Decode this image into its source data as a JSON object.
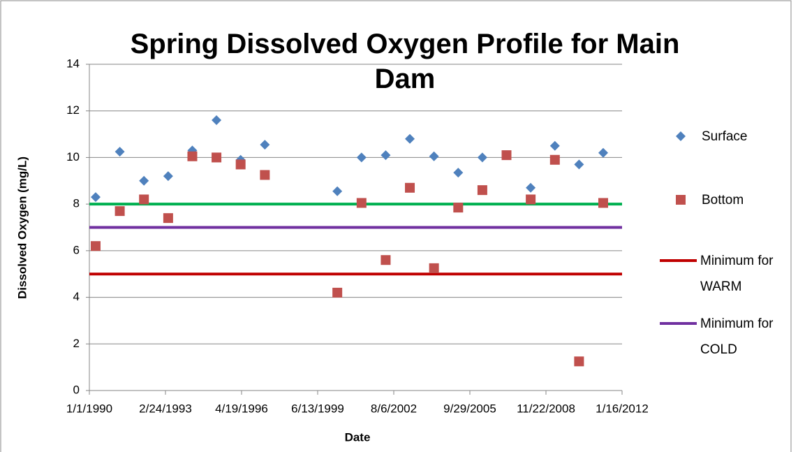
{
  "chart_data": {
    "type": "scatter",
    "title": "Spring Dissolved Oxygen Profile for Main Dam",
    "x_label": "Date",
    "y_label": "Dissolved Oxygen (mg/L)",
    "xlim": [
      32874,
      40924
    ],
    "xticks": [
      {
        "value": 32874,
        "label": "1/1/1990"
      },
      {
        "value": 34024,
        "label": "2/24/1993"
      },
      {
        "value": 35174,
        "label": "4/19/1996"
      },
      {
        "value": 36324,
        "label": "6/13/1999"
      },
      {
        "value": 37474,
        "label": "8/6/2002"
      },
      {
        "value": 38624,
        "label": "9/29/2005"
      },
      {
        "value": 39774,
        "label": "11/22/2008"
      },
      {
        "value": 40924,
        "label": "1/16/2012"
      }
    ],
    "ylim": [
      0,
      14
    ],
    "yticks": [
      0,
      2,
      4,
      6,
      8,
      10,
      12,
      14
    ],
    "grid": true,
    "legend": "right",
    "series": [
      {
        "name": "Surface",
        "color": "#4f81bd",
        "marker": "diamond",
        "x": [
          32969,
          33334,
          33699,
          34065,
          34430,
          34795,
          35160,
          35526,
          36621,
          36987,
          37352,
          37717,
          38082,
          38448,
          38813,
          39178,
          39543,
          39909,
          40274,
          40639
        ],
        "values": [
          8.3,
          10.25,
          9.0,
          9.2,
          10.3,
          11.6,
          9.9,
          10.55,
          8.55,
          10.0,
          10.1,
          10.8,
          10.05,
          9.35,
          10.0,
          null,
          8.7,
          10.5,
          9.7,
          10.2
        ]
      },
      {
        "name": "Bottom",
        "color": "#c0504d",
        "marker": "square",
        "x": [
          32969,
          33334,
          33699,
          34065,
          34430,
          34795,
          35160,
          35526,
          36621,
          36987,
          37352,
          37717,
          38082,
          38448,
          38813,
          39178,
          39543,
          39909,
          40274,
          40639
        ],
        "values": [
          6.2,
          7.7,
          8.2,
          7.4,
          10.05,
          10.0,
          9.7,
          9.25,
          4.2,
          8.05,
          5.6,
          8.7,
          5.25,
          7.85,
          8.6,
          10.1,
          8.2,
          9.9,
          1.25,
          8.05
        ]
      },
      {
        "color": "#00b050",
        "marker": "line",
        "x": [
          32874,
          40924
        ],
        "values": [
          8,
          8
        ]
      },
      {
        "name": "Minimum for WARM",
        "color": "#c00000",
        "marker": "line",
        "x": [
          32874,
          40924
        ],
        "values": [
          5,
          5
        ]
      },
      {
        "name": "Minimum for COLD",
        "color": "#7030a0",
        "marker": "line",
        "x": [
          32874,
          40924
        ],
        "values": [
          7,
          7
        ]
      }
    ]
  }
}
